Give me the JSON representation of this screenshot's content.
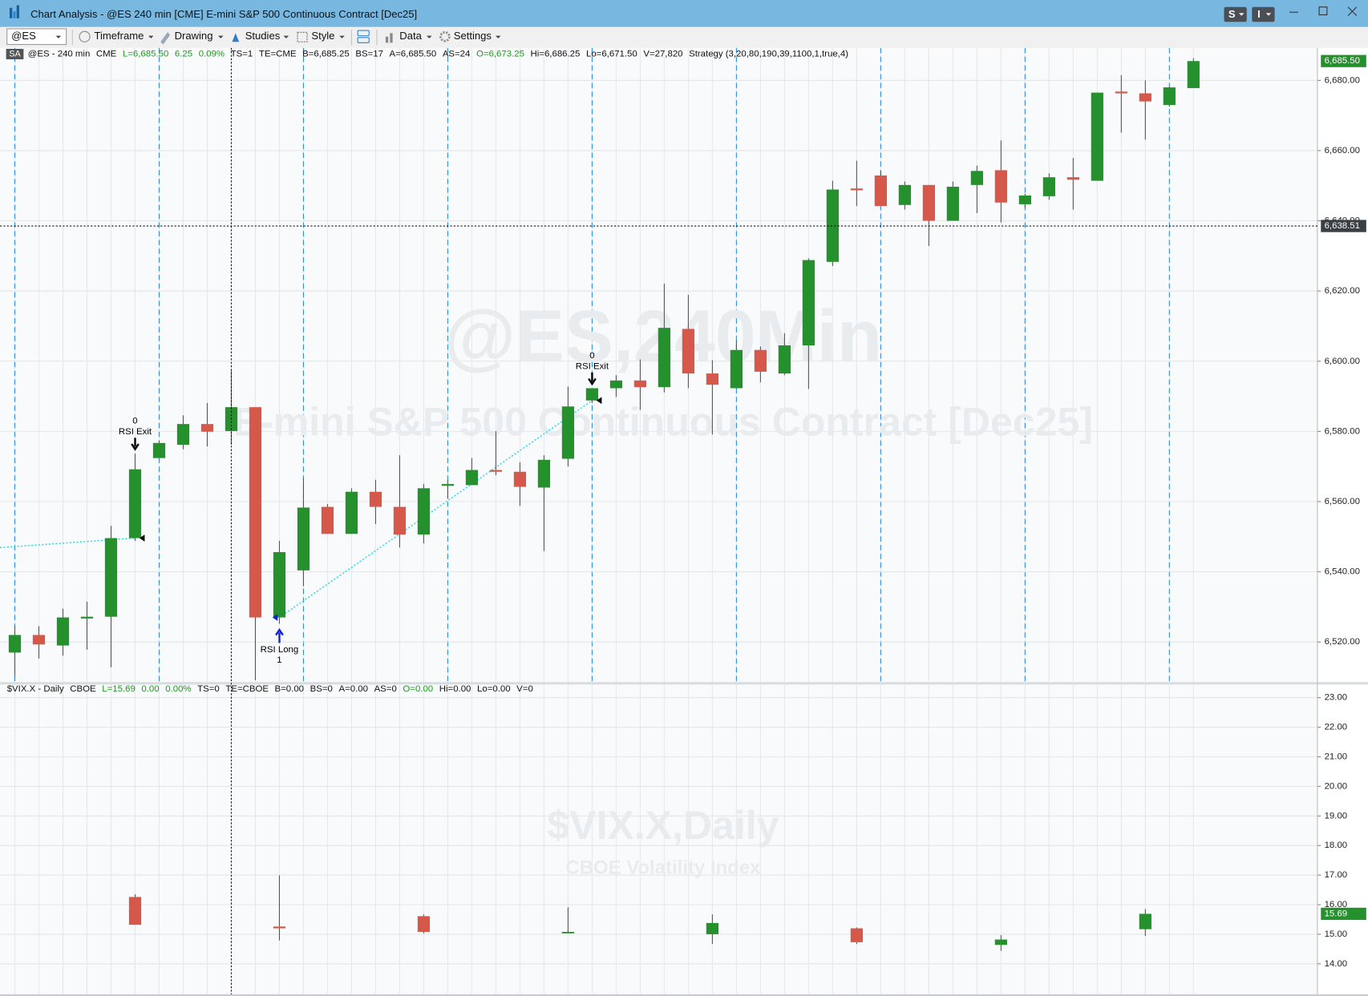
{
  "window": {
    "title": "Chart Analysis - @ES 240 min [CME] E-mini S&P 500 Continuous Contract [Dec25]",
    "buttons": [
      "S",
      "I"
    ]
  },
  "toolbar": {
    "symbol": "@ES",
    "items": [
      "Timeframe",
      "Drawing",
      "Studies",
      "Style",
      "Data",
      "Settings"
    ]
  },
  "badge": "SA",
  "chart_data": [
    {
      "type": "candlestick",
      "watermark": "@ES,240Min",
      "watermark_subtitle": "E-mini S&P 500 Continuous Contract [Dec25]",
      "info": [
        {
          "text": "@ES - 240 min",
          "color": "#111111"
        },
        {
          "text": "CME",
          "color": "#111111"
        },
        {
          "text": "L=6,685.50",
          "color": "#1e9a1e"
        },
        {
          "text": "6.25",
          "color": "#1e9a1e"
        },
        {
          "text": "0.09%",
          "color": "#1e9a1e"
        },
        {
          "text": "TS=1",
          "color": "#111111"
        },
        {
          "text": "TE=CME",
          "color": "#111111"
        },
        {
          "text": "B=6,685.25",
          "color": "#111111"
        },
        {
          "text": "BS=17",
          "color": "#111111"
        },
        {
          "text": "A=6,685.50",
          "color": "#111111"
        },
        {
          "text": "AS=24",
          "color": "#111111"
        },
        {
          "text": "O=6,673.25",
          "color": "#1e9a1e"
        },
        {
          "text": "Hi=6,686.25",
          "color": "#111111"
        },
        {
          "text": "Lo=6,671.50",
          "color": "#111111"
        },
        {
          "text": "V=27,820",
          "color": "#111111"
        },
        {
          "text": "Strategy (3,20,80,190,39,1100,1,true,4)",
          "color": "#111111"
        }
      ],
      "open": [
        6517.0,
        6522.0,
        6519.0,
        6526.7,
        6527.2,
        6549.6,
        6572.4,
        6576.2,
        6582.1,
        6580.1,
        6586.9,
        6527.0,
        6540.4,
        6558.5,
        6550.8,
        6562.8,
        6558.5,
        6550.6,
        6564.5,
        6564.7,
        6569.0,
        6568.5,
        6564.0,
        6572.2,
        6588.8,
        6592.3,
        6594.5,
        6592.6,
        6609.2,
        6596.5,
        6592.3,
        6603.2,
        6596.5,
        6604.5,
        6628.3,
        6649.2,
        6652.9,
        6644.5,
        6650.2,
        6640.0,
        6650.2,
        6654.4,
        6644.7,
        6647.0,
        6652.4,
        6651.4,
        6676.8,
        6676.3,
        6673.0,
        6677.8
      ],
      "high": [
        6524.5,
        6524.5,
        6529.5,
        6531.5,
        6553.1,
        6573.7,
        6577.4,
        6584.6,
        6588.1,
        6597.3,
        6586.9,
        6548.8,
        6566.7,
        6559.3,
        6563.8,
        6566.2,
        6573.2,
        6565.0,
        6566.2,
        6572.4,
        6580.1,
        6571.2,
        6573.2,
        6592.8,
        6592.3,
        6596.0,
        6600.5,
        6622.1,
        6618.9,
        6600.3,
        6606.0,
        6604.2,
        6608.0,
        6629.3,
        6651.4,
        6657.1,
        6654.2,
        6651.2,
        6650.2,
        6651.2,
        6655.7,
        6662.9,
        6647.7,
        6653.5,
        6657.9,
        6676.5,
        6681.5,
        6680.0,
        6678.2,
        6686.3
      ],
      "low": [
        6510.3,
        6515.3,
        6516.1,
        6517.8,
        6512.8,
        6548.8,
        6572.4,
        6574.9,
        6575.7,
        6576.2,
        6509.1,
        6525.2,
        6535.9,
        6550.8,
        6550.8,
        6553.6,
        6546.9,
        6548.1,
        6560.8,
        6564.7,
        6567.5,
        6558.8,
        6545.9,
        6570.0,
        6588.1,
        6589.8,
        6586.1,
        6591.1,
        6592.3,
        6579.1,
        6592.3,
        6594.0,
        6596.0,
        6592.1,
        6627.1,
        6644.2,
        6644.2,
        6643.2,
        6632.8,
        6640.0,
        6642.2,
        6639.5,
        6643.7,
        6646.0,
        6643.2,
        6651.4,
        6665.1,
        6663.1,
        6672.5,
        6677.8
      ],
      "close": [
        6522.0,
        6519.3,
        6527.0,
        6527.2,
        6549.6,
        6569.2,
        6576.7,
        6582.1,
        6579.9,
        6586.9,
        6527.0,
        6545.6,
        6558.3,
        6550.8,
        6562.8,
        6558.5,
        6550.6,
        6563.8,
        6565.0,
        6569.0,
        6568.5,
        6564.2,
        6571.9,
        6587.1,
        6592.3,
        6594.5,
        6592.6,
        6609.5,
        6596.5,
        6593.3,
        6603.2,
        6597.0,
        6604.5,
        6628.8,
        6648.9,
        6648.7,
        6644.2,
        6650.2,
        6640.0,
        6649.7,
        6654.2,
        6645.2,
        6647.2,
        6652.4,
        6651.7,
        6676.5,
        6676.3,
        6674.0,
        6678.0,
        6685.5
      ],
      "up_color": "#24912c",
      "down_color": "#d6584a",
      "wick_color": "#555555",
      "ylim": [
        6508.6,
        6686.0
      ],
      "yticks": [
        {
          "value": 6520,
          "label": "6,520.00"
        },
        {
          "value": 6540,
          "label": "6,540.00"
        },
        {
          "value": 6560,
          "label": "6,560.00"
        },
        {
          "value": 6580,
          "label": "6,580.00"
        },
        {
          "value": 6600,
          "label": "6,600.00"
        },
        {
          "value": 6620,
          "label": "6,620.00"
        },
        {
          "value": 6640,
          "label": "6,640.00"
        },
        {
          "value": 6660,
          "label": "6,660.00"
        },
        {
          "value": 6680,
          "label": "6,680.00"
        }
      ],
      "grid": true,
      "last_price": {
        "value": 6685.5,
        "label": "6,685.50"
      },
      "crosshair": {
        "value": 6638.51,
        "label": "6,638.51"
      },
      "annotations": [
        {
          "bar": 5,
          "side": "exit",
          "label": "RSI Exit",
          "qty": "0",
          "price": 6549.6
        },
        {
          "bar": 11,
          "side": "entry",
          "label": "RSI Long",
          "qty": "1",
          "price": 6527.0
        },
        {
          "bar": 24,
          "side": "exit",
          "label": "RSI Exit",
          "qty": "0",
          "price": 6588.8
        }
      ],
      "trade_lines": [
        {
          "from_price": 6546.9,
          "to": 0
        },
        {
          "from": 1,
          "to": 2
        }
      ],
      "trade_line_color": "#2fd6e6"
    },
    {
      "type": "candlestick",
      "watermark": "$VIX.X,Daily",
      "watermark_subtitle": "CBOE Volatility Index",
      "info": [
        {
          "text": "$VIX.X - Daily",
          "color": "#111111"
        },
        {
          "text": "CBOE",
          "color": "#111111"
        },
        {
          "text": "L=15.69",
          "color": "#1e9a1e"
        },
        {
          "text": "0.00",
          "color": "#1e9a1e"
        },
        {
          "text": "0.00%",
          "color": "#1e9a1e"
        },
        {
          "text": "TS=0",
          "color": "#111111"
        },
        {
          "text": "TE=CBOE",
          "color": "#111111"
        },
        {
          "text": "B=0.00",
          "color": "#111111"
        },
        {
          "text": "BS=0",
          "color": "#111111"
        },
        {
          "text": "A=0.00",
          "color": "#111111"
        },
        {
          "text": "AS=0",
          "color": "#111111"
        },
        {
          "text": "O=0.00",
          "color": "#1e9a1e"
        },
        {
          "text": "Hi=0.00",
          "color": "#111111"
        },
        {
          "text": "Lo=0.00",
          "color": "#111111"
        },
        {
          "text": "V=0",
          "color": "#111111"
        }
      ],
      "x": [
        5,
        11,
        17,
        23,
        29,
        35,
        41,
        47
      ],
      "open": [
        16.26,
        15.26,
        15.61,
        15.03,
        15.0,
        15.2,
        14.64,
        15.17
      ],
      "high": [
        16.35,
        16.99,
        15.67,
        15.91,
        15.67,
        15.23,
        14.97,
        15.85
      ],
      "low": [
        15.32,
        14.79,
        15.03,
        15.03,
        14.67,
        14.67,
        14.44,
        14.94
      ],
      "close": [
        15.32,
        15.2,
        15.08,
        15.08,
        15.38,
        14.73,
        14.82,
        15.69
      ],
      "up_color": "#24912c",
      "down_color": "#d6584a",
      "wick_color": "#555555",
      "ylim": [
        12.97,
        23.47
      ],
      "yticks": [
        {
          "value": 14,
          "label": "14.00"
        },
        {
          "value": 15,
          "label": "15.00"
        },
        {
          "value": 16,
          "label": "16.00"
        },
        {
          "value": 17,
          "label": "17.00"
        },
        {
          "value": 18,
          "label": "18.00"
        },
        {
          "value": 19,
          "label": "19.00"
        },
        {
          "value": 20,
          "label": "20.00"
        },
        {
          "value": 21,
          "label": "21.00"
        },
        {
          "value": 22,
          "label": "22.00"
        },
        {
          "value": 23,
          "label": "23.00"
        }
      ],
      "grid": true,
      "last_price": {
        "value": 15.69,
        "label": 15.69
      }
    }
  ]
}
